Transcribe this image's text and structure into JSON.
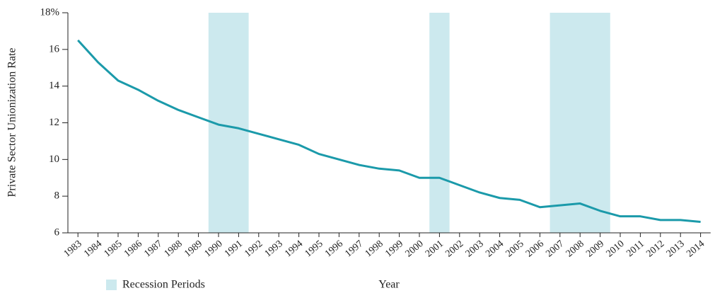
{
  "chart_data": {
    "type": "line",
    "y_label": "Private Sector Unionization Rate",
    "x_label": "Year",
    "categories": [
      "1983",
      "1984",
      "1985",
      "1986",
      "1987",
      "1988",
      "1989",
      "1990",
      "1991",
      "1992",
      "1993",
      "1994",
      "1995",
      "1996",
      "1997",
      "1998",
      "1999",
      "2000",
      "2001",
      "2002",
      "2003",
      "2004",
      "2005",
      "2006",
      "2007",
      "2008",
      "2009",
      "2010",
      "2011",
      "2012",
      "2013",
      "2014"
    ],
    "series": [
      {
        "name": "Private Sector Unionization Rate",
        "color": "#1b9aaa",
        "values": [
          16.5,
          15.3,
          14.3,
          13.8,
          13.2,
          12.7,
          12.3,
          11.9,
          11.7,
          11.4,
          11.1,
          10.8,
          10.3,
          10.0,
          9.7,
          9.5,
          9.4,
          9.0,
          9.0,
          8.6,
          8.2,
          7.9,
          7.8,
          7.4,
          7.5,
          7.6,
          7.2,
          6.9,
          6.9,
          6.7,
          6.7,
          6.6
        ]
      }
    ],
    "recessions": {
      "name": "Recession Periods",
      "color": "#cce9ee",
      "periods": [
        [
          "1990",
          "1991"
        ],
        [
          "2001",
          "2001"
        ],
        [
          "2007",
          "2009"
        ]
      ]
    },
    "ylim": [
      6,
      18
    ],
    "yticks": [
      6,
      8,
      10,
      12,
      14,
      16,
      {
        "value": 18,
        "label": "18%"
      }
    ]
  }
}
